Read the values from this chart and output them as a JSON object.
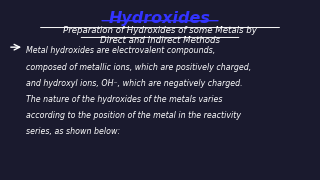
{
  "bg_color": "#1a1a2e",
  "title": "Hydroxides",
  "title_color": "#3333ff",
  "subtitle_line1": "Preparation of Hydroxides of some Metals by",
  "subtitle_line2": "Direct and Indirect Methods",
  "subtitle_color": "#ffffff",
  "body_lines": [
    "Metal hydroxides are electrovalent compounds,",
    "composed of metallic ions, which are positively charged,",
    "and hydroxyl ions, OH⁻, which are negatively charged.",
    "The nature of the hydroxides of the metals varies",
    "according to the position of the metal in the reactivity",
    "series, as shown below:"
  ],
  "body_color": "#ffffff",
  "arrow_color": "#ffffff"
}
